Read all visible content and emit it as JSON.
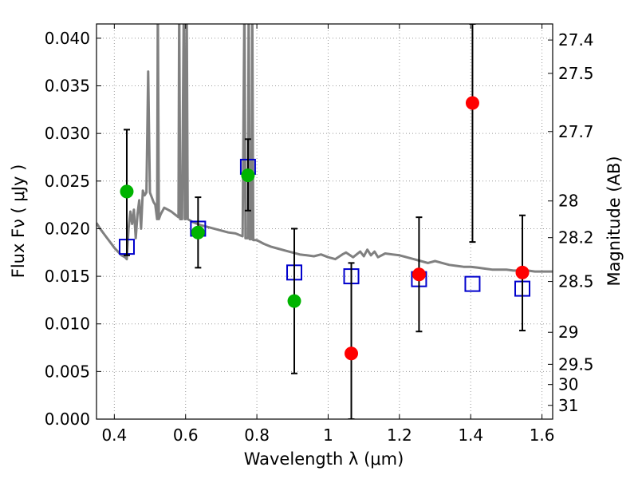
{
  "chart_data": {
    "type": "scatter",
    "title": "",
    "xlabel": "Wavelength  λ (μm)",
    "ylabel": "Flux  Fν  ( μJy )",
    "y2label": "Magnitude (AB)",
    "xlim": [
      0.35,
      1.63
    ],
    "ylim": [
      0.0,
      0.0415
    ],
    "grid": true,
    "x_ticks": [
      {
        "value": 0.4,
        "label": "0.4"
      },
      {
        "value": 0.6,
        "label": "0.6"
      },
      {
        "value": 0.8,
        "label": "0.8"
      },
      {
        "value": 1.0,
        "label": "1"
      },
      {
        "value": 1.2,
        "label": "1.2"
      },
      {
        "value": 1.4,
        "label": "1.4"
      },
      {
        "value": 1.6,
        "label": "1.6"
      }
    ],
    "y_ticks": [
      {
        "value": 0.0,
        "label": "0.000"
      },
      {
        "value": 0.005,
        "label": "0.005"
      },
      {
        "value": 0.01,
        "label": "0.010"
      },
      {
        "value": 0.015,
        "label": "0.015"
      },
      {
        "value": 0.02,
        "label": "0.020"
      },
      {
        "value": 0.025,
        "label": "0.025"
      },
      {
        "value": 0.03,
        "label": "0.030"
      },
      {
        "value": 0.035,
        "label": "0.035"
      },
      {
        "value": 0.04,
        "label": "0.040"
      }
    ],
    "y2_ticks": [
      {
        "mag": 27.4,
        "label": "27.4"
      },
      {
        "mag": 27.5,
        "label": "27.5"
      },
      {
        "mag": 27.7,
        "label": "27.7"
      },
      {
        "mag": 28.0,
        "label": "28"
      },
      {
        "mag": 28.2,
        "label": "28.2"
      },
      {
        "mag": 28.5,
        "label": "28.5"
      },
      {
        "mag": 29.0,
        "label": "29"
      },
      {
        "mag": 29.5,
        "label": "29.5"
      },
      {
        "mag": 30.0,
        "label": "30"
      },
      {
        "mag": 31.0,
        "label": "31"
      }
    ],
    "colors": {
      "model": "#808080",
      "green_points": "#00b400",
      "red_points": "#ff0000",
      "model_fluxes": "#0000cc",
      "errorbars": "#000000",
      "grid": "#9a9a9a"
    },
    "series": [
      {
        "kind": "line",
        "color": "#808080",
        "points": [
          [
            0.35,
            0.0206
          ],
          [
            0.36,
            0.02
          ],
          [
            0.37,
            0.0195
          ],
          [
            0.38,
            0.019
          ],
          [
            0.39,
            0.0185
          ],
          [
            0.4,
            0.018
          ],
          [
            0.41,
            0.0176
          ],
          [
            0.42,
            0.0172
          ],
          [
            0.43,
            0.017
          ],
          [
            0.435,
            0.0168
          ],
          [
            0.44,
            0.02
          ],
          [
            0.445,
            0.0218
          ],
          [
            0.45,
            0.0205
          ],
          [
            0.455,
            0.022
          ],
          [
            0.46,
            0.019
          ],
          [
            0.465,
            0.0215
          ],
          [
            0.47,
            0.023
          ],
          [
            0.475,
            0.02
          ],
          [
            0.48,
            0.024
          ],
          [
            0.485,
            0.0235
          ],
          [
            0.49,
            0.0238
          ],
          [
            0.495,
            0.0365
          ],
          [
            0.5,
            0.0238
          ],
          [
            0.51,
            0.0228
          ],
          [
            0.515,
            0.0225
          ],
          [
            0.52,
            0.021
          ],
          [
            0.522,
            0.044
          ],
          [
            0.525,
            0.021
          ],
          [
            0.53,
            0.0215
          ],
          [
            0.54,
            0.0222
          ],
          [
            0.55,
            0.022
          ],
          [
            0.56,
            0.0218
          ],
          [
            0.57,
            0.0215
          ],
          [
            0.58,
            0.0212
          ],
          [
            0.582,
            0.044
          ],
          [
            0.585,
            0.021
          ],
          [
            0.59,
            0.021
          ],
          [
            0.595,
            0.044
          ],
          [
            0.598,
            0.021
          ],
          [
            0.6,
            0.021
          ],
          [
            0.603,
            0.044
          ],
          [
            0.606,
            0.021
          ],
          [
            0.62,
            0.0207
          ],
          [
            0.64,
            0.0204
          ],
          [
            0.66,
            0.0202
          ],
          [
            0.68,
            0.02
          ],
          [
            0.7,
            0.0198
          ],
          [
            0.72,
            0.0196
          ],
          [
            0.74,
            0.0195
          ],
          [
            0.76,
            0.0192
          ],
          [
            0.765,
            0.044
          ],
          [
            0.768,
            0.019
          ],
          [
            0.775,
            0.019
          ],
          [
            0.777,
            0.044
          ],
          [
            0.78,
            0.0189
          ],
          [
            0.785,
            0.0189
          ],
          [
            0.787,
            0.044
          ],
          [
            0.79,
            0.0188
          ],
          [
            0.8,
            0.0188
          ],
          [
            0.82,
            0.0184
          ],
          [
            0.84,
            0.0181
          ],
          [
            0.86,
            0.0179
          ],
          [
            0.88,
            0.0177
          ],
          [
            0.9,
            0.0175
          ],
          [
            0.92,
            0.0173
          ],
          [
            0.94,
            0.0172
          ],
          [
            0.96,
            0.0171
          ],
          [
            0.98,
            0.0173
          ],
          [
            1.0,
            0.017
          ],
          [
            1.02,
            0.0168
          ],
          [
            1.04,
            0.0173
          ],
          [
            1.05,
            0.0175
          ],
          [
            1.07,
            0.017
          ],
          [
            1.09,
            0.0176
          ],
          [
            1.1,
            0.0171
          ],
          [
            1.11,
            0.0178
          ],
          [
            1.12,
            0.0172
          ],
          [
            1.13,
            0.0176
          ],
          [
            1.14,
            0.017
          ],
          [
            1.16,
            0.0174
          ],
          [
            1.18,
            0.0173
          ],
          [
            1.2,
            0.0172
          ],
          [
            1.22,
            0.017
          ],
          [
            1.24,
            0.0168
          ],
          [
            1.26,
            0.0166
          ],
          [
            1.28,
            0.0164
          ],
          [
            1.3,
            0.0166
          ],
          [
            1.32,
            0.0164
          ],
          [
            1.34,
            0.0162
          ],
          [
            1.36,
            0.0161
          ],
          [
            1.38,
            0.016
          ],
          [
            1.4,
            0.016
          ],
          [
            1.42,
            0.0159
          ],
          [
            1.44,
            0.0158
          ],
          [
            1.46,
            0.0157
          ],
          [
            1.48,
            0.0157
          ],
          [
            1.5,
            0.0157
          ],
          [
            1.52,
            0.0156
          ],
          [
            1.54,
            0.0156
          ],
          [
            1.56,
            0.0156
          ],
          [
            1.58,
            0.0155
          ],
          [
            1.6,
            0.0155
          ],
          [
            1.63,
            0.0155
          ]
        ]
      },
      {
        "kind": "points",
        "marker": "circle",
        "color": "#00b400",
        "points": [
          {
            "x": 0.435,
            "y": 0.0239,
            "yerr_low": 0.0172,
            "yerr_high": 0.0304
          },
          {
            "x": 0.635,
            "y": 0.0196,
            "yerr_low": 0.0159,
            "yerr_high": 0.0233
          },
          {
            "x": 0.775,
            "y": 0.0256,
            "yerr_low": 0.0219,
            "yerr_high": 0.0294
          },
          {
            "x": 0.905,
            "y": 0.0124,
            "yerr_low": 0.0048,
            "yerr_high": 0.02
          }
        ]
      },
      {
        "kind": "points",
        "marker": "circle",
        "color": "#ff0000",
        "points": [
          {
            "x": 1.065,
            "y": 0.0069,
            "yerr_low": 0.0,
            "yerr_high": 0.0164
          },
          {
            "x": 1.255,
            "y": 0.0152,
            "yerr_low": 0.0092,
            "yerr_high": 0.0212
          },
          {
            "x": 1.405,
            "y": 0.0332,
            "yerr_low": 0.0186,
            "yerr_high": 0.0415
          },
          {
            "x": 1.545,
            "y": 0.0154,
            "yerr_low": 0.0093,
            "yerr_high": 0.0214
          }
        ]
      },
      {
        "kind": "points",
        "marker": "square",
        "color": "#0000cc",
        "points": [
          {
            "x": 0.435,
            "y": 0.0181
          },
          {
            "x": 0.635,
            "y": 0.02
          },
          {
            "x": 0.775,
            "y": 0.0265
          },
          {
            "x": 0.905,
            "y": 0.0154
          },
          {
            "x": 1.065,
            "y": 0.015
          },
          {
            "x": 1.255,
            "y": 0.0147
          },
          {
            "x": 1.405,
            "y": 0.0142
          },
          {
            "x": 1.545,
            "y": 0.0137
          }
        ]
      }
    ]
  }
}
